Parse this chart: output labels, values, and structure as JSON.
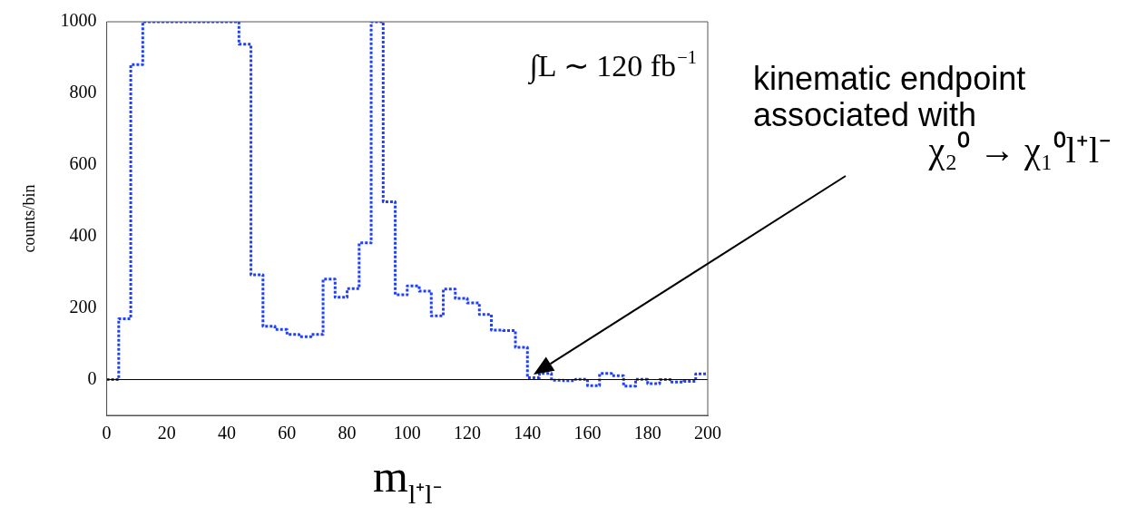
{
  "chart_data": {
    "type": "histogram",
    "xlabel": "m$_{l⁺l⁻}$",
    "ylabel": "counts/bin",
    "bins": [
      0,
      4,
      8,
      12,
      16,
      20,
      24,
      28,
      32,
      36,
      40,
      44,
      48,
      52,
      56,
      60,
      64,
      68,
      72,
      76,
      80,
      84,
      88,
      92,
      96,
      100,
      104,
      108,
      112,
      116,
      120,
      124,
      128,
      132,
      136,
      140,
      144,
      148,
      152,
      156,
      160,
      164,
      168,
      172,
      176,
      180,
      184,
      188,
      192,
      196,
      200
    ],
    "values": [
      0,
      170,
      880,
      1000,
      1000,
      1000,
      1000,
      1000,
      1000,
      1000,
      1000,
      937,
      293,
      149,
      140,
      126,
      120,
      126,
      281,
      230,
      254,
      382,
      1000,
      497,
      237,
      262,
      247,
      178,
      253,
      227,
      214,
      182,
      138,
      137,
      90,
      5,
      17,
      -2,
      -3,
      1,
      -17,
      17,
      11,
      -18,
      1,
      -11,
      0,
      -7,
      -5,
      16
    ],
    "color": "#1f3fff",
    "line_style": "dotted",
    "xlim": [
      0,
      200
    ],
    "xticks": [
      0,
      20,
      40,
      60,
      80,
      100,
      120,
      140,
      160,
      180,
      200
    ],
    "ylim": [
      -100,
      1000
    ],
    "yticks": [
      0,
      200,
      400,
      600,
      800,
      1000
    ],
    "grid": false,
    "legend": false,
    "ref_lines": [
      {
        "axis": "y",
        "value": 0,
        "color": "#000000"
      }
    ],
    "annotations": [
      "∫L ∼ 120 fb$^{−1}$",
      "kinematic endpoint\nassociated with\nχ₂⁰ → χ₁⁰l⁺l⁻"
    ]
  }
}
